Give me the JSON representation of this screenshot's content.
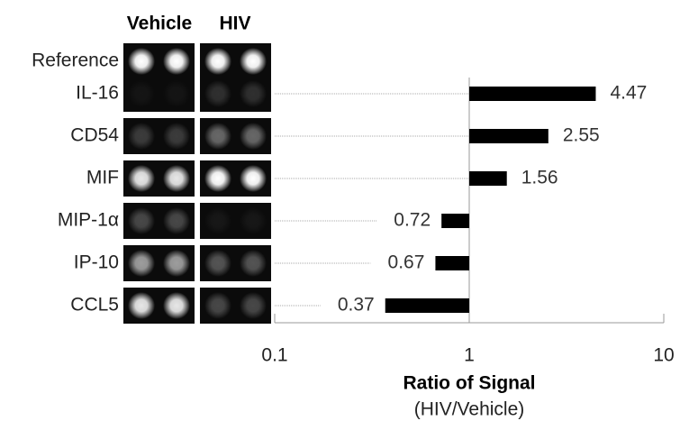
{
  "chart_data": {
    "type": "bar",
    "orientation": "horizontal",
    "column_headers": [
      "Vehicle",
      "HIV"
    ],
    "reference_label": "Reference",
    "categories": [
      "IL-16",
      "CD54",
      "MIF",
      "MIP-1α",
      "IP-10",
      "CCL5"
    ],
    "values": [
      4.47,
      2.55,
      1.56,
      0.72,
      0.67,
      0.37
    ],
    "color": "#000000",
    "x_scale": "log",
    "baseline": 1,
    "xlim": [
      0.1,
      10
    ],
    "xticks": [
      0.1,
      1,
      10
    ],
    "xlabel": "Ratio of Signal",
    "xlabel_note": "(HIV/Vehicle)"
  }
}
